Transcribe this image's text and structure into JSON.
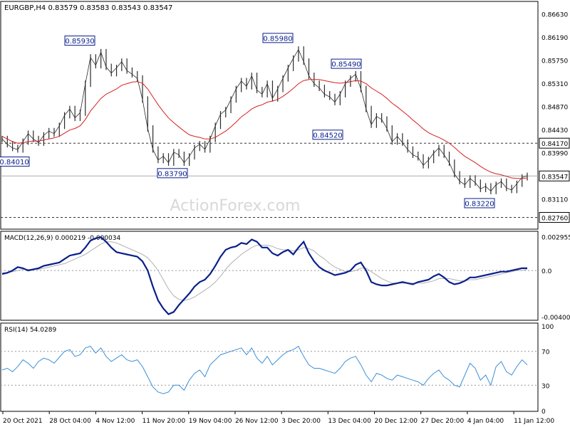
{
  "chart_data": [
    {
      "type": "line",
      "panel": "price",
      "header": "EURGBP,H4  0.83579 0.83583 0.83543 0.83547",
      "watermark": "ActionForex.com",
      "ylim": [
        0.8255,
        0.8685
      ],
      "y_ticks": [
        "0.86630",
        "0.86190",
        "0.85750",
        "0.85310",
        "0.84870",
        "0.84430",
        "0.83990",
        "0.83547",
        "0.83110"
      ],
      "key_levels": [
        {
          "label": "0.84170",
          "value": 0.8417,
          "style": "dashed"
        },
        {
          "label": "0.83547",
          "value": 0.83547,
          "style": "current"
        },
        {
          "label": "0.82760",
          "value": 0.8276,
          "style": "dashed"
        }
      ],
      "annotations": [
        {
          "label": "0.84010",
          "x": "Oct 21",
          "value": 0.8401
        },
        {
          "label": "0.85930",
          "x": "Nov 4",
          "value": 0.8593
        },
        {
          "label": "0.83790",
          "x": "Nov 16",
          "value": 0.8379
        },
        {
          "label": "0.85980",
          "x": "Dec 7",
          "value": 0.8598
        },
        {
          "label": "0.85490",
          "x": "Dec 17",
          "value": 0.8549
        },
        {
          "label": "0.84520",
          "x": "Dec 14",
          "value": 0.8452
        },
        {
          "label": "0.83220",
          "x": "Jan 5",
          "value": 0.8322
        }
      ],
      "series": [
        {
          "values": [
            0.8425,
            0.8415,
            0.8408,
            0.8405,
            0.842,
            0.8435,
            0.8425,
            0.8418,
            0.8432,
            0.844,
            0.8435,
            0.845,
            0.847,
            0.8482,
            0.8465,
            0.8475,
            0.853,
            0.858,
            0.8565,
            0.859,
            0.8562,
            0.855,
            0.856,
            0.8572,
            0.8555,
            0.8548,
            0.854,
            0.85,
            0.8445,
            0.8405,
            0.8385,
            0.8392,
            0.838,
            0.84,
            0.8395,
            0.838,
            0.8392,
            0.8408,
            0.8415,
            0.8405,
            0.8425,
            0.845,
            0.8472,
            0.848,
            0.85,
            0.852,
            0.8535,
            0.8525,
            0.8545,
            0.8518,
            0.851,
            0.853,
            0.8502,
            0.852,
            0.854,
            0.856,
            0.8578,
            0.8595,
            0.8572,
            0.8545,
            0.853,
            0.8522,
            0.851,
            0.8505,
            0.8495,
            0.851,
            0.853,
            0.854,
            0.8548,
            0.852,
            0.8482,
            0.8452,
            0.8468,
            0.8462,
            0.8445,
            0.842,
            0.843,
            0.8418,
            0.8405,
            0.8395,
            0.839,
            0.8375,
            0.8385,
            0.8398,
            0.8408,
            0.8395,
            0.838,
            0.8358,
            0.8345,
            0.8338,
            0.835,
            0.8342,
            0.833,
            0.8335,
            0.8326,
            0.8338,
            0.8344,
            0.8332,
            0.8328,
            0.834,
            0.8352,
            0.8355
          ]
        },
        {
          "values": [
            0.843,
            0.8425,
            0.842,
            0.8417,
            0.8418,
            0.842,
            0.8421,
            0.8421,
            0.8423,
            0.8425,
            0.8427,
            0.843,
            0.8436,
            0.8442,
            0.8445,
            0.845,
            0.8462,
            0.8478,
            0.849,
            0.8502,
            0.851,
            0.8515,
            0.852,
            0.8527,
            0.853,
            0.8533,
            0.8534,
            0.8531,
            0.852,
            0.8505,
            0.849,
            0.8477,
            0.8465,
            0.8456,
            0.8448,
            0.844,
            0.8433,
            0.843,
            0.8428,
            0.8425,
            0.8425,
            0.8428,
            0.8434,
            0.844,
            0.8448,
            0.8457,
            0.8467,
            0.8474,
            0.8482,
            0.8487,
            0.849,
            0.8495,
            0.8497,
            0.85,
            0.8506,
            0.8513,
            0.8521,
            0.853,
            0.8536,
            0.8538,
            0.8538,
            0.8538,
            0.8536,
            0.8534,
            0.8532,
            0.8531,
            0.8532,
            0.8534,
            0.8536,
            0.8535,
            0.853,
            0.8522,
            0.8516,
            0.851,
            0.8502,
            0.8493,
            0.8486,
            0.8478,
            0.847,
            0.8461,
            0.8453,
            0.8444,
            0.8437,
            0.8432,
            0.8428,
            0.8423,
            0.8417,
            0.8409,
            0.84,
            0.8392,
            0.8386,
            0.838,
            0.8373,
            0.8367,
            0.8362,
            0.8359,
            0.8357,
            0.8354,
            0.8351,
            0.835,
            0.835,
            0.8351
          ]
        }
      ]
    },
    {
      "type": "line",
      "panel": "macd",
      "header": "MACD(12,26,9) 0.000219 -0.000034",
      "ylim": [
        -0.0042,
        0.0031
      ],
      "y_ticks": [
        "0.002955",
        "0.0",
        "-0.004009"
      ],
      "reference_lines": [
        0
      ],
      "series": [
        {
          "values": [
            -0.0003,
            -0.0002,
            0.0,
            0.0003,
            0.0002,
            0.0,
            0.0001,
            0.0002,
            0.0004,
            0.0005,
            0.0006,
            0.0007,
            0.001,
            0.0013,
            0.0014,
            0.0015,
            0.002,
            0.0026,
            0.0028,
            0.0029,
            0.0025,
            0.002,
            0.0016,
            0.0015,
            0.0014,
            0.0013,
            0.0012,
            0.0008,
            0.0,
            -0.0014,
            -0.0026,
            -0.0033,
            -0.0038,
            -0.0036,
            -0.003,
            -0.0025,
            -0.002,
            -0.0014,
            -0.001,
            -0.0008,
            -0.0003,
            0.0004,
            0.0012,
            0.0018,
            0.002,
            0.0021,
            0.0024,
            0.0023,
            0.0027,
            0.0025,
            0.002,
            0.002,
            0.0015,
            0.0013,
            0.0016,
            0.0018,
            0.0014,
            0.002,
            0.0025,
            0.0015,
            0.0008,
            0.0003,
            0.0,
            -0.0002,
            -0.0004,
            -0.0003,
            -0.0002,
            0.0,
            0.0005,
            0.0007,
            0.0,
            -0.001,
            -0.0012,
            -0.0013,
            -0.0013,
            -0.0012,
            -0.0011,
            -0.001,
            -0.0011,
            -0.0012,
            -0.001,
            -0.0009,
            -0.0008,
            -0.0005,
            -0.0003,
            -0.0006,
            -0.001,
            -0.0012,
            -0.0011,
            -0.0009,
            -0.0006,
            -0.0006,
            -0.0005,
            -0.0004,
            -0.0003,
            -0.0002,
            -0.0001,
            -0.0001,
            0.0,
            0.0001,
            0.0002,
            0.0002
          ]
        },
        {
          "values": [
            -0.0002,
            -0.0002,
            -0.0001,
            0.0,
            0.0001,
            0.0001,
            0.0001,
            0.0001,
            0.0002,
            0.0003,
            0.0004,
            0.0005,
            0.0006,
            0.0008,
            0.001,
            0.0012,
            0.0014,
            0.0017,
            0.002,
            0.0023,
            0.0025,
            0.0025,
            0.0024,
            0.0022,
            0.002,
            0.0018,
            0.0016,
            0.0014,
            0.0011,
            0.0006,
            0.0,
            -0.0008,
            -0.0016,
            -0.0022,
            -0.0025,
            -0.0026,
            -0.0025,
            -0.0023,
            -0.002,
            -0.0017,
            -0.0014,
            -0.001,
            -0.0005,
            0.0001,
            0.0006,
            0.001,
            0.0014,
            0.0017,
            0.002,
            0.0022,
            0.0022,
            0.0022,
            0.0021,
            0.0019,
            0.0018,
            0.0018,
            0.0017,
            0.0018,
            0.002,
            0.0019,
            0.0017,
            0.0013,
            0.001,
            0.0006,
            0.0003,
            0.0001,
            -0.0001,
            -0.0001,
            0.0,
            0.0002,
            0.0002,
            -0.0001,
            -0.0004,
            -0.0007,
            -0.0009,
            -0.0011,
            -0.0011,
            -0.0011,
            -0.0011,
            -0.0011,
            -0.0011,
            -0.0011,
            -0.001,
            -0.0009,
            -0.0007,
            -0.0007,
            -0.0007,
            -0.0008,
            -0.0009,
            -0.0009,
            -0.0008,
            -0.0008,
            -0.0007,
            -0.0006,
            -0.0005,
            -0.0004,
            -0.0003,
            -0.0002,
            -0.0001,
            0.0,
            0.0,
            0.0001
          ]
        }
      ]
    },
    {
      "type": "line",
      "panel": "rsi",
      "header": "RSI(14) 54.0289",
      "ylim": [
        0,
        100
      ],
      "y_ticks": [
        "100",
        "70",
        "30",
        "0"
      ],
      "reference_lines": [
        70,
        30
      ],
      "series": [
        {
          "values": [
            48,
            50,
            46,
            52,
            60,
            56,
            50,
            58,
            62,
            60,
            56,
            63,
            70,
            72,
            64,
            66,
            74,
            76,
            68,
            74,
            64,
            58,
            62,
            66,
            60,
            58,
            60,
            52,
            40,
            28,
            22,
            20,
            22,
            30,
            30,
            24,
            36,
            44,
            48,
            40,
            54,
            60,
            66,
            68,
            70,
            72,
            74,
            66,
            74,
            62,
            56,
            64,
            54,
            60,
            66,
            70,
            72,
            76,
            64,
            54,
            50,
            50,
            48,
            46,
            44,
            50,
            58,
            62,
            64,
            54,
            42,
            34,
            44,
            42,
            38,
            36,
            42,
            40,
            38,
            36,
            34,
            30,
            38,
            44,
            48,
            40,
            36,
            30,
            28,
            42,
            56,
            50,
            36,
            42,
            30,
            52,
            58,
            46,
            42,
            52,
            60,
            54
          ]
        }
      ]
    }
  ],
  "x_labels": [
    "20 Oct 2021",
    "28 Oct 04:00",
    "4 Nov 12:00",
    "11 Nov 20:00",
    "19 Nov 04:00",
    "26 Nov 12:00",
    "3 Dec 20:00",
    "13 Dec 04:00",
    "20 Dec 12:00",
    "27 Dec 20:00",
    "4 Jan 04:00",
    "11 Jan 12:00"
  ],
  "colors": {
    "price": "#2b2b2b",
    "ma": "#d62020",
    "macd": "#0a1f8a",
    "signal": "#b0b0b0",
    "rsi": "#3b8fd8",
    "grid": "#9a9a9a",
    "label_border": "#0a1f8a",
    "label_text": "#0a1f8a",
    "watermark": "#d8d8d8"
  }
}
